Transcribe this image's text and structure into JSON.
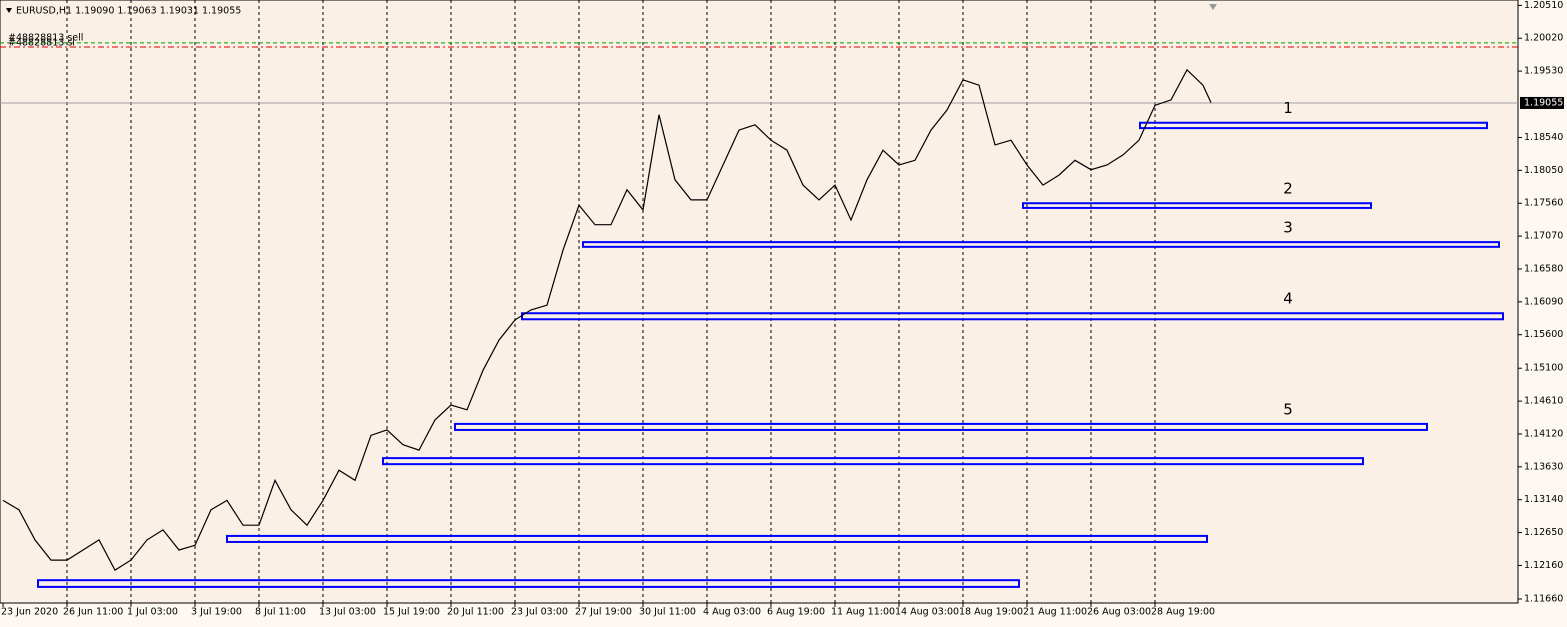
{
  "chart_data": {
    "type": "line",
    "symbol_info": "EURUSD,H1  1.19090 1.19063 1.19031 1.19055",
    "x": [
      0,
      16,
      32,
      48,
      64,
      80,
      96,
      112,
      128,
      144,
      160,
      176,
      192,
      208,
      224,
      240,
      256,
      272,
      288,
      304,
      320,
      336,
      352,
      368,
      384,
      400,
      416,
      432,
      448,
      464,
      480,
      496,
      512,
      528,
      544,
      560,
      576,
      592,
      608,
      624,
      640,
      656,
      672,
      688,
      704,
      720,
      736,
      752,
      768,
      784,
      800,
      816,
      832,
      848,
      864,
      880,
      896,
      912,
      928,
      944,
      960,
      976,
      992,
      1008,
      1024,
      1040,
      1056,
      1072,
      1088,
      1104,
      1120,
      1136,
      1152,
      1168,
      1184,
      1200,
      1208
    ],
    "series": [
      {
        "color": "#000000",
        "values": [
          1.1313,
          1.1299,
          1.1254,
          1.1224,
          1.1224,
          1.1239,
          1.1254,
          1.1209,
          1.1224,
          1.1254,
          1.1269,
          1.1239,
          1.1246,
          1.1299,
          1.1313,
          1.1276,
          1.1276,
          1.1343,
          1.1299,
          1.1276,
          1.1313,
          1.1358,
          1.1343,
          1.141,
          1.1418,
          1.1396,
          1.1388,
          1.1433,
          1.1455,
          1.1448,
          1.1507,
          1.1552,
          1.1582,
          1.1597,
          1.1604,
          1.1686,
          1.1753,
          1.1724,
          1.1724,
          1.1776,
          1.1746,
          1.1888,
          1.1791,
          1.1761,
          1.1761,
          1.1813,
          1.1865,
          1.1873,
          1.185,
          1.1835,
          1.1783,
          1.1761,
          1.1783,
          1.1731,
          1.1791,
          1.1835,
          1.1813,
          1.182,
          1.1865,
          1.1895,
          1.194,
          1.1932,
          1.1843,
          1.185,
          1.1813,
          1.1783,
          1.1798,
          1.182,
          1.1806,
          1.1813,
          1.1828,
          1.185,
          1.1902,
          1.191,
          1.1955,
          1.1932,
          1.1906
        ]
      }
    ],
    "xlim": [
      0,
      1515
    ],
    "xticks": [
      {
        "value": 0,
        "label": "23 Jun 2020"
      },
      {
        "value": 64,
        "label": "26 Jun 11:00"
      },
      {
        "value": 128,
        "label": "1 Jul 03:00"
      },
      {
        "value": 192,
        "label": "3 Jul 19:00"
      },
      {
        "value": 256,
        "label": "8 Jul 11:00"
      },
      {
        "value": 320,
        "label": "13 Jul 03:00"
      },
      {
        "value": 384,
        "label": "15 Jul 19:00"
      },
      {
        "value": 448,
        "label": "20 Jul 11:00"
      },
      {
        "value": 512,
        "label": "23 Jul 03:00"
      },
      {
        "value": 576,
        "label": "27 Jul 19:00"
      },
      {
        "value": 640,
        "label": "30 Jul 11:00"
      },
      {
        "value": 704,
        "label": "4 Aug 03:00"
      },
      {
        "value": 768,
        "label": "6 Aug 19:00"
      },
      {
        "value": 832,
        "label": "11 Aug 11:00"
      },
      {
        "value": 896,
        "label": "14 Aug 03:00"
      },
      {
        "value": 960,
        "label": "18 Aug 19:00"
      },
      {
        "value": 1024,
        "label": "21 Aug 11:00"
      },
      {
        "value": 1088,
        "label": "26 Aug 03:00"
      },
      {
        "value": 1152,
        "label": "28 Aug 19:00"
      }
    ],
    "ylim": [
      1.116,
      1.2059
    ],
    "yticks": [
      {
        "value": 1.2051,
        "label": "1.20510"
      },
      {
        "value": 1.2002,
        "label": "1.20020"
      },
      {
        "value": 1.1953,
        "label": "1.19530"
      },
      {
        "value": 1.1854,
        "label": "1.18540"
      },
      {
        "value": 1.1805,
        "label": "1.18050"
      },
      {
        "value": 1.1756,
        "label": "1.17560"
      },
      {
        "value": 1.1707,
        "label": "1.17070"
      },
      {
        "value": 1.1658,
        "label": "1.16580"
      },
      {
        "value": 1.1609,
        "label": "1.16090"
      },
      {
        "value": 1.156,
        "label": "1.15600"
      },
      {
        "value": 1.151,
        "label": "1.15100"
      },
      {
        "value": 1.1461,
        "label": "1.14610"
      },
      {
        "value": 1.1412,
        "label": "1.14120"
      },
      {
        "value": 1.1363,
        "label": "1.13630"
      },
      {
        "value": 1.1314,
        "label": "1.13140"
      },
      {
        "value": 1.1265,
        "label": "1.12650"
      },
      {
        "value": 1.1216,
        "label": "1.12160"
      },
      {
        "value": 1.1166,
        "label": "1.11660"
      }
    ],
    "current_price": 1.19055,
    "grid": true,
    "order_lines": [
      {
        "label": "#48828813 sell",
        "price": 1.1995,
        "color": "#00a000"
      },
      {
        "label": "#48828813 sl",
        "price": 1.1989,
        "color": "#e00000"
      }
    ],
    "zone_color": "#0000ff",
    "zones": [
      {
        "label": "1",
        "x1": 1137,
        "x2": 1484,
        "top": 1.1876,
        "bottom": 1.1868
      },
      {
        "label": "2",
        "x1": 1020,
        "x2": 1368,
        "top": 1.1756,
        "bottom": 1.1749
      },
      {
        "label": "3",
        "x1": 580,
        "x2": 1496,
        "top": 1.1698,
        "bottom": 1.1691
      },
      {
        "label": "4",
        "x1": 519,
        "x2": 1500,
        "top": 1.1592,
        "bottom": 1.1583
      },
      {
        "label": "5",
        "x1": 452,
        "x2": 1424,
        "top": 1.1427,
        "bottom": 1.1418
      },
      {
        "x1": 380,
        "x2": 1360,
        "top": 1.1376,
        "bottom": 1.1367
      },
      {
        "x1": 224,
        "x2": 1204,
        "top": 1.126,
        "bottom": 1.1251
      },
      {
        "x1": 35,
        "x2": 1016,
        "top": 1.1194,
        "bottom": 1.1184
      }
    ]
  }
}
